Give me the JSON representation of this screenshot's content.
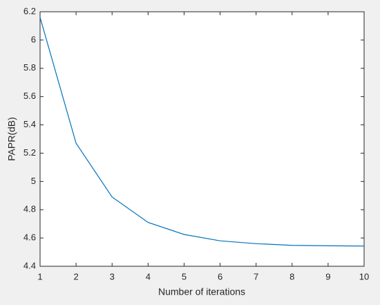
{
  "chart_data": {
    "type": "line",
    "xlabel": "Number of iterations",
    "ylabel": "PAPR(dB)",
    "x": [
      1,
      2,
      3,
      4,
      5,
      6,
      7,
      8,
      9,
      10
    ],
    "values": [
      6.16,
      5.27,
      4.89,
      4.71,
      4.625,
      4.58,
      4.56,
      4.548,
      4.545,
      4.543
    ],
    "color": "#0072bd",
    "xlim": [
      1,
      10
    ],
    "xticks": [
      1,
      2,
      3,
      4,
      5,
      6,
      7,
      8,
      9,
      10
    ],
    "ylim": [
      4.4,
      6.2
    ],
    "yticks": [
      4.4,
      4.6,
      4.8,
      5,
      5.2,
      5.4,
      5.6,
      5.8,
      6,
      6.2
    ],
    "grid": false
  }
}
